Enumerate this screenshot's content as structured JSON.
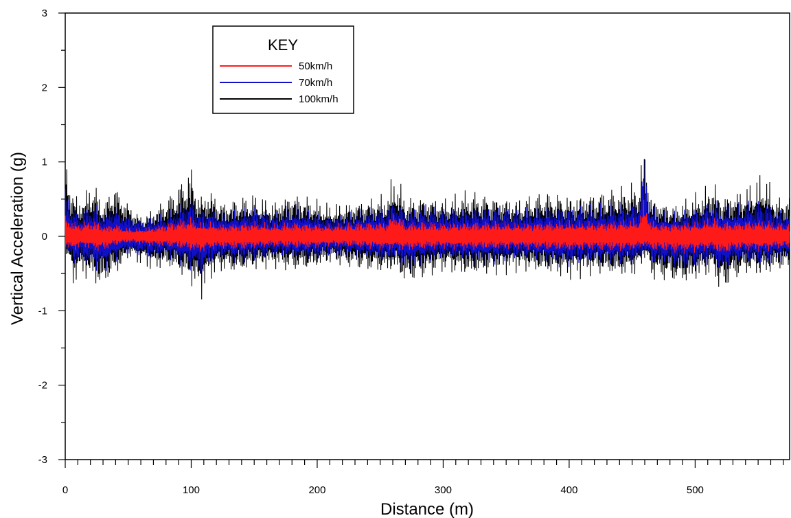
{
  "chart_data": {
    "type": "line",
    "title": "",
    "xlabel": "Distance (m)",
    "ylabel": "Vertical Acceleration (g)",
    "xlim": [
      0,
      575
    ],
    "ylim": [
      -3,
      3
    ],
    "x_ticks": [
      0,
      100,
      200,
      300,
      400,
      500
    ],
    "y_ticks": [
      3,
      2,
      1,
      0,
      -1,
      -2,
      -3
    ],
    "x_minor_step": 10,
    "y_minor_step": 0.5,
    "grid": false,
    "legend": {
      "title": "KEY",
      "placement": "top-left"
    },
    "series": [
      {
        "name": "100km/h",
        "color": "#000000",
        "envelope_x": [
          0,
          3,
          6,
          10,
          15,
          22,
          28,
          32,
          38,
          45,
          50,
          60,
          70,
          80,
          90,
          100,
          105,
          108,
          115,
          125,
          135,
          150,
          165,
          180,
          195,
          210,
          225,
          240,
          255,
          262,
          270,
          285,
          300,
          320,
          340,
          360,
          380,
          400,
          420,
          440,
          455,
          460,
          465,
          475,
          485,
          495,
          505,
          515,
          520,
          530,
          540,
          555,
          565,
          575
        ],
        "envelope_max": [
          1.15,
          0.9,
          0.7,
          0.55,
          0.6,
          0.82,
          0.55,
          0.5,
          0.8,
          0.6,
          0.5,
          0.3,
          0.4,
          0.55,
          0.75,
          1.02,
          0.65,
          0.6,
          0.7,
          0.5,
          0.55,
          0.6,
          0.5,
          0.65,
          0.55,
          0.45,
          0.5,
          0.55,
          0.6,
          0.93,
          0.55,
          0.6,
          0.55,
          0.65,
          0.6,
          0.55,
          0.65,
          0.6,
          0.65,
          0.7,
          0.8,
          1.4,
          0.6,
          0.5,
          0.45,
          0.55,
          0.65,
          0.82,
          0.6,
          0.65,
          0.7,
          0.9,
          0.55,
          0.6
        ],
        "envelope_min": [
          -0.2,
          -0.4,
          -0.75,
          -0.55,
          -0.6,
          -0.65,
          -0.82,
          -0.7,
          -0.6,
          -0.45,
          -0.3,
          -0.4,
          -0.5,
          -0.45,
          -0.55,
          -0.7,
          -0.8,
          -0.88,
          -0.6,
          -0.5,
          -0.55,
          -0.5,
          -0.45,
          -0.5,
          -0.5,
          -0.4,
          -0.45,
          -0.5,
          -0.55,
          -0.5,
          -0.72,
          -0.6,
          -0.5,
          -0.6,
          -0.55,
          -0.5,
          -0.55,
          -0.6,
          -0.55,
          -0.6,
          -0.55,
          -0.3,
          -0.6,
          -0.65,
          -0.7,
          -0.72,
          -0.6,
          -0.55,
          -0.85,
          -0.65,
          -0.55,
          -0.6,
          -0.5,
          -0.5
        ]
      },
      {
        "name": "70km/h",
        "color": "#1010c8",
        "envelope_x": [
          0,
          3,
          6,
          10,
          15,
          22,
          28,
          32,
          38,
          45,
          50,
          60,
          70,
          80,
          90,
          100,
          105,
          108,
          115,
          125,
          135,
          150,
          165,
          180,
          195,
          210,
          225,
          240,
          255,
          262,
          270,
          285,
          300,
          320,
          340,
          360,
          380,
          400,
          420,
          440,
          455,
          460,
          465,
          475,
          485,
          495,
          505,
          515,
          520,
          530,
          540,
          555,
          565,
          575
        ],
        "envelope_max": [
          0.7,
          0.6,
          0.45,
          0.35,
          0.4,
          0.5,
          0.4,
          0.35,
          0.5,
          0.4,
          0.35,
          0.25,
          0.3,
          0.35,
          0.45,
          0.6,
          0.45,
          0.4,
          0.45,
          0.35,
          0.4,
          0.45,
          0.35,
          0.45,
          0.4,
          0.3,
          0.35,
          0.4,
          0.45,
          0.6,
          0.4,
          0.45,
          0.4,
          0.45,
          0.45,
          0.4,
          0.45,
          0.45,
          0.45,
          0.5,
          0.55,
          1.2,
          0.45,
          0.35,
          0.35,
          0.4,
          0.45,
          0.6,
          0.45,
          0.45,
          0.5,
          0.55,
          0.4,
          0.4
        ],
        "envelope_min": [
          -0.2,
          -0.3,
          -0.45,
          -0.4,
          -0.4,
          -0.45,
          -0.55,
          -0.5,
          -0.4,
          -0.3,
          -0.25,
          -0.3,
          -0.35,
          -0.3,
          -0.4,
          -0.5,
          -0.55,
          -0.6,
          -0.45,
          -0.35,
          -0.4,
          -0.35,
          -0.3,
          -0.35,
          -0.35,
          -0.3,
          -0.3,
          -0.35,
          -0.4,
          -0.35,
          -0.5,
          -0.4,
          -0.35,
          -0.4,
          -0.4,
          -0.35,
          -0.4,
          -0.45,
          -0.4,
          -0.45,
          -0.4,
          -0.25,
          -0.45,
          -0.45,
          -0.5,
          -0.5,
          -0.45,
          -0.4,
          -0.65,
          -0.45,
          -0.4,
          -0.45,
          -0.35,
          -0.35
        ]
      },
      {
        "name": "50km/h",
        "color": "#ff1a1a",
        "envelope_x": [
          0,
          3,
          6,
          10,
          15,
          22,
          28,
          32,
          38,
          45,
          50,
          60,
          70,
          80,
          90,
          100,
          105,
          108,
          115,
          125,
          135,
          150,
          165,
          180,
          195,
          210,
          225,
          240,
          255,
          262,
          270,
          285,
          300,
          320,
          340,
          360,
          380,
          400,
          420,
          440,
          455,
          460,
          465,
          475,
          485,
          495,
          505,
          515,
          520,
          530,
          540,
          555,
          565,
          575
        ],
        "envelope_max": [
          0.3,
          0.28,
          0.22,
          0.2,
          0.22,
          0.25,
          0.2,
          0.15,
          0.2,
          0.15,
          0.12,
          0.12,
          0.15,
          0.2,
          0.25,
          0.28,
          0.22,
          0.2,
          0.22,
          0.18,
          0.2,
          0.22,
          0.18,
          0.22,
          0.2,
          0.18,
          0.2,
          0.22,
          0.22,
          0.4,
          0.2,
          0.22,
          0.2,
          0.22,
          0.22,
          0.2,
          0.22,
          0.22,
          0.22,
          0.24,
          0.26,
          0.55,
          0.22,
          0.2,
          0.2,
          0.22,
          0.22,
          0.3,
          0.22,
          0.22,
          0.24,
          0.25,
          0.2,
          0.2
        ],
        "envelope_min": [
          -0.15,
          -0.2,
          -0.22,
          -0.18,
          -0.15,
          -0.2,
          -0.22,
          -0.2,
          -0.15,
          -0.12,
          -0.1,
          -0.12,
          -0.15,
          -0.15,
          -0.18,
          -0.22,
          -0.25,
          -0.25,
          -0.2,
          -0.18,
          -0.2,
          -0.18,
          -0.16,
          -0.18,
          -0.18,
          -0.15,
          -0.16,
          -0.18,
          -0.2,
          -0.18,
          -0.22,
          -0.2,
          -0.18,
          -0.2,
          -0.2,
          -0.18,
          -0.2,
          -0.22,
          -0.2,
          -0.22,
          -0.2,
          -0.15,
          -0.22,
          -0.22,
          -0.24,
          -0.24,
          -0.22,
          -0.2,
          -0.3,
          -0.22,
          -0.2,
          -0.22,
          -0.18,
          -0.18
        ]
      }
    ]
  }
}
